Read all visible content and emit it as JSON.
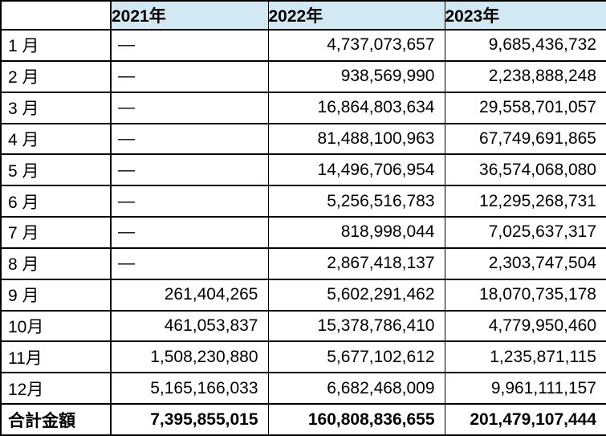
{
  "colors": {
    "header_bg": "#D2E9F3",
    "border": "#000000",
    "text": "#000000"
  },
  "table": {
    "empty_marker": "—",
    "columns": [
      "",
      "2021年",
      "2022年",
      "2023年"
    ],
    "rows": [
      {
        "label": "1 月",
        "v2021": "—",
        "v2022": "4,737,073,657",
        "v2023": "9,685,436,732"
      },
      {
        "label": "2 月",
        "v2021": "—",
        "v2022": "938,569,990",
        "v2023": "2,238,888,248"
      },
      {
        "label": "3 月",
        "v2021": "—",
        "v2022": "16,864,803,634",
        "v2023": "29,558,701,057"
      },
      {
        "label": "4 月",
        "v2021": "—",
        "v2022": "81,488,100,963",
        "v2023": "67,749,691,865"
      },
      {
        "label": "5 月",
        "v2021": "—",
        "v2022": "14,496,706,954",
        "v2023": "36,574,068,080"
      },
      {
        "label": "6 月",
        "v2021": "—",
        "v2022": "5,256,516,783",
        "v2023": "12,295,268,731"
      },
      {
        "label": "7 月",
        "v2021": "—",
        "v2022": "818,998,044",
        "v2023": "7,025,637,317"
      },
      {
        "label": "8 月",
        "v2021": "—",
        "v2022": "2,867,418,137",
        "v2023": "2,303,747,504"
      },
      {
        "label": "9 月",
        "v2021": "261,404,265",
        "v2022": "5,602,291,462",
        "v2023": "18,070,735,178"
      },
      {
        "label": "10月",
        "v2021": "461,053,837",
        "v2022": "15,378,786,410",
        "v2023": "4,779,950,460"
      },
      {
        "label": "11月",
        "v2021": "1,508,230,880",
        "v2022": "5,677,102,612",
        "v2023": "1,235,871,115"
      },
      {
        "label": "12月",
        "v2021": "5,165,166,033",
        "v2022": "6,682,468,009",
        "v2023": "9,961,111,157"
      }
    ],
    "total": {
      "label": "合計金額",
      "v2021": "7,395,855,015",
      "v2022": "160,808,836,655",
      "v2023": "201,479,107,444"
    }
  },
  "chart_data": {
    "type": "table",
    "title": "",
    "categories": [
      "1月",
      "2月",
      "3月",
      "4月",
      "5月",
      "6月",
      "7月",
      "8月",
      "9月",
      "10月",
      "11月",
      "12月"
    ],
    "series": [
      {
        "name": "2021年",
        "values": [
          null,
          null,
          null,
          null,
          null,
          null,
          null,
          null,
          261404265,
          461053837,
          1508230880,
          5165166033
        ],
        "total": 7395855015
      },
      {
        "name": "2022年",
        "values": [
          4737073657,
          938569990,
          16864803634,
          81488100963,
          14496706954,
          5256516783,
          818998044,
          2867418137,
          5602291462,
          15378786410,
          5677102612,
          6682468009
        ],
        "total": 160808836655
      },
      {
        "name": "2023年",
        "values": [
          9685436732,
          2238888248,
          29558701057,
          67749691865,
          36574068080,
          12295268731,
          7025637317,
          2303747504,
          18070735178,
          4779950460,
          1235871115,
          9961111157
        ],
        "total": 201479107444
      }
    ],
    "total_row_label": "合計金額",
    "empty_marker": "—"
  }
}
